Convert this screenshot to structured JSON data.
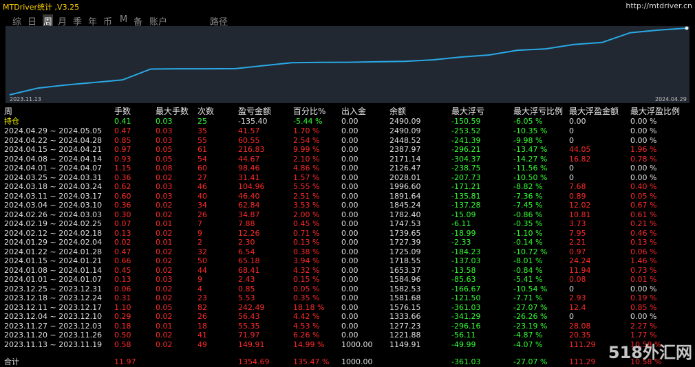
{
  "titlebar": {
    "title": "MTDriver统计 ,V3.25",
    "url": "http://mtdriver.cn"
  },
  "tabs": [
    "综",
    "日",
    "周",
    "月",
    "季",
    "年",
    "币",
    "M",
    "备",
    "账户",
    "路径"
  ],
  "active_tab": 2,
  "chart": {
    "start_label": "2023.11.13",
    "end_label": "2024.04.29",
    "line_color": "#29a9e6",
    "balances": [
      1000.0,
      1149.91,
      1221.88,
      1277.23,
      1333.66,
      1576.15,
      1581.68,
      1582.53,
      1584.96,
      1653.37,
      1718.55,
      1725.09,
      1727.39,
      1739.65,
      1747.53,
      1782.4,
      1845.24,
      1891.64,
      1996.6,
      2028.01,
      2126.47,
      2171.14,
      2387.97,
      2448.52,
      2490.09
    ]
  },
  "headers": [
    "周",
    "手数",
    "最大手数",
    "次数",
    "盈亏金额",
    "百分比%",
    "出入金",
    "余额",
    "最大浮亏",
    "最大浮亏比例",
    "最大浮盈金额",
    "最大浮盈比例"
  ],
  "position_row": [
    "持仓",
    "0.41",
    "0.03",
    "25",
    "-135.40",
    "-5.44 %",
    "0.00",
    "2490.09",
    "-150.59",
    "-6.05 %",
    "0.00",
    "0.00 %"
  ],
  "rows": [
    [
      "2024.04.29 ~ 2024.05.05",
      "0.47",
      "0.03",
      "35",
      "41.57",
      "1.70 %",
      "0.00",
      "2490.09",
      "-253.52",
      "-10.35 %",
      "0",
      "0.00 %"
    ],
    [
      "2024.04.22 ~ 2024.04.28",
      "0.85",
      "0.03",
      "55",
      "60.55",
      "2.54 %",
      "0.00",
      "2448.52",
      "-241.39",
      "-9.98 %",
      "0",
      "0.00 %"
    ],
    [
      "2024.04.15 ~ 2024.04.21",
      "0.97",
      "0.05",
      "61",
      "216.83",
      "9.99 %",
      "0.00",
      "2387.97",
      "-296.21",
      "-13.47 %",
      "44.05",
      "1.96 %"
    ],
    [
      "2024.04.08 ~ 2024.04.14",
      "0.93",
      "0.05",
      "54",
      "44.67",
      "2.10 %",
      "0.00",
      "2171.14",
      "-304.37",
      "-14.27 %",
      "16.82",
      "0.78 %"
    ],
    [
      "2024.04.01 ~ 2024.04.07",
      "1.15",
      "0.08",
      "60",
      "98.46",
      "4.86 %",
      "0.00",
      "2126.47",
      "-238.75",
      "-11.56 %",
      "0",
      "0.00 %"
    ],
    [
      "2024.03.25 ~ 2024.03.31",
      "0.36",
      "0.02",
      "27",
      "31.41",
      "1.57 %",
      "0.00",
      "2028.01",
      "-207.73",
      "-10.50 %",
      "0",
      "0.00 %"
    ],
    [
      "2024.03.18 ~ 2024.03.24",
      "0.62",
      "0.03",
      "46",
      "104.96",
      "5.55 %",
      "0.00",
      "1996.60",
      "-171.21",
      "-8.82 %",
      "7.68",
      "0.40 %"
    ],
    [
      "2024.03.11 ~ 2024.03.17",
      "0.60",
      "0.03",
      "40",
      "46.40",
      "2.51 %",
      "0.00",
      "1891.64",
      "-135.81",
      "-7.36 %",
      "0.89",
      "0.05 %"
    ],
    [
      "2024.03.04 ~ 2024.03.10",
      "0.36",
      "0.02",
      "34",
      "62.84",
      "3.53 %",
      "0.00",
      "1845.24",
      "-137.28",
      "-7.45 %",
      "12.02",
      "0.67 %"
    ],
    [
      "2024.02.26 ~ 2024.03.03",
      "0.30",
      "0.02",
      "26",
      "34.87",
      "2.00 %",
      "0.00",
      "1782.40",
      "-15.09",
      "-0.86 %",
      "10.81",
      "0.61 %"
    ],
    [
      "2024.02.19 ~ 2024.02.25",
      "0.07",
      "0.01",
      "7",
      "7.88",
      "0.45 %",
      "0.00",
      "1747.53",
      "-6.11",
      "-0.35 %",
      "3.73",
      "0.21 %"
    ],
    [
      "2024.02.12 ~ 2024.02.18",
      "0.13",
      "0.02",
      "9",
      "12.26",
      "0.71 %",
      "0.00",
      "1739.65",
      "-18.99",
      "-1.10 %",
      "7.95",
      "0.46 %"
    ],
    [
      "2024.01.29 ~ 2024.02.04",
      "0.02",
      "0.01",
      "2",
      "2.30",
      "0.13 %",
      "0.00",
      "1727.39",
      "-2.33",
      "-0.14 %",
      "2.21",
      "0.13 %"
    ],
    [
      "2024.01.22 ~ 2024.01.28",
      "0.47",
      "0.02",
      "32",
      "6.54",
      "0.38 %",
      "0.00",
      "1725.09",
      "-184.23",
      "-10.72 %",
      "0.97",
      "0.06 %"
    ],
    [
      "2024.01.15 ~ 2024.01.21",
      "0.66",
      "0.02",
      "50",
      "65.18",
      "3.94 %",
      "0.00",
      "1718.55",
      "-137.03",
      "-8.01 %",
      "24.24",
      "1.46 %"
    ],
    [
      "2024.01.08 ~ 2024.01.14",
      "0.45",
      "0.02",
      "44",
      "68.41",
      "4.32 %",
      "0.00",
      "1653.37",
      "-13.58",
      "-0.84 %",
      "11.94",
      "0.73 %"
    ],
    [
      "2024.01.01 ~ 2024.01.07",
      "0.13",
      "0.03",
      "9",
      "2.43",
      "0.15 %",
      "0.00",
      "1584.96",
      "-85.63",
      "-5.41 %",
      "0.08",
      "0.01 %"
    ],
    [
      "2023.12.25 ~ 2023.12.31",
      "0.06",
      "0.02",
      "4",
      "0.85",
      "0.05 %",
      "0.00",
      "1582.53",
      "-166.67",
      "-10.54 %",
      "0",
      "0.00 %"
    ],
    [
      "2023.12.18 ~ 2023.12.24",
      "0.31",
      "0.02",
      "23",
      "5.53",
      "0.35 %",
      "0.00",
      "1581.68",
      "-121.50",
      "-7.71 %",
      "2.93",
      "0.19 %"
    ],
    [
      "2023.12.11 ~ 2023.12.17",
      "1.10",
      "0.05",
      "82",
      "242.49",
      "18.18 %",
      "0.00",
      "1576.15",
      "-361.03",
      "-27.07 %",
      "12.4",
      "0.85 %"
    ],
    [
      "2023.12.04 ~ 2023.12.10",
      "0.29",
      "0.02",
      "26",
      "56.43",
      "4.42 %",
      "0.00",
      "1333.66",
      "-341.29",
      "-26.26 %",
      "0",
      "0.00 %"
    ],
    [
      "2023.11.27 ~ 2023.12.03",
      "0.18",
      "0.01",
      "18",
      "55.35",
      "4.53 %",
      "0.00",
      "1277.23",
      "-296.16",
      "-23.19 %",
      "28.08",
      "2.27 %"
    ],
    [
      "2023.11.20 ~ 2023.11.26",
      "0.50",
      "0.02",
      "41",
      "71.97",
      "6.26 %",
      "0.00",
      "1221.88",
      "-56.11",
      "-4.87 %",
      "20.35",
      "1.77 %"
    ],
    [
      "2023.11.13 ~ 2023.11.19",
      "0.58",
      "0.02",
      "49",
      "149.91",
      "14.99 %",
      "1000.00",
      "1149.91",
      "-49.99",
      "-4.07 %",
      "111.29",
      "10.58 %"
    ]
  ],
  "total_row": [
    "合计",
    "11.97",
    "",
    "",
    "1354.69",
    "135.47 %",
    "1000.00",
    "",
    "-361.03",
    "-27.07 %",
    "111.29",
    "10.58 %"
  ],
  "watermark": "518外汇网",
  "colors": {
    "title": "#ffd400",
    "red": "#ff2a2a",
    "green": "#33ff33",
    "yellow": "#ffff00",
    "white": "#e0e0e0",
    "chart_bg": "#222831"
  }
}
